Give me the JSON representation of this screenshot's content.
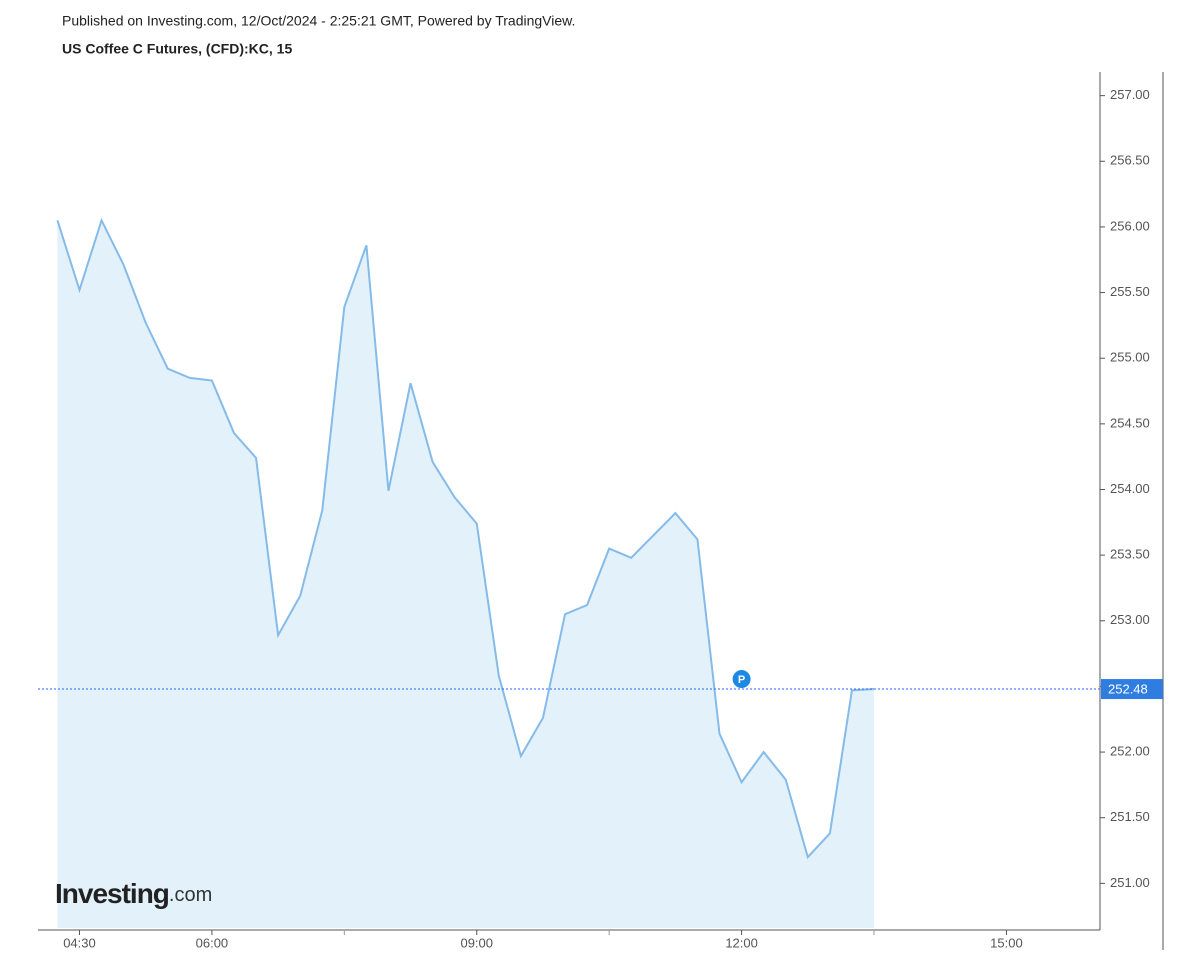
{
  "header": {
    "published": "Published on Investing.com, 12/Oct/2024 - 2:25:21 GMT, Powered by TradingView.",
    "title": "US Coffee C Futures, (CFD):KC, 15"
  },
  "logo": {
    "brand": "Investing",
    "suffix": ".com"
  },
  "chart_data": {
    "type": "area",
    "x": [
      4.25,
      4.5,
      4.75,
      5,
      5.25,
      5.5,
      5.75,
      6,
      6.25,
      6.5,
      6.75,
      7,
      7.25,
      7.5,
      7.75,
      8,
      8.25,
      8.5,
      8.75,
      9,
      9.25,
      9.5,
      9.75,
      10,
      10.25,
      10.5,
      10.75,
      11,
      11.25,
      11.5,
      11.75,
      12,
      12.25,
      12.5,
      12.75,
      13,
      13.25,
      13.5
    ],
    "series": [
      {
        "color": "#85bbe8",
        "fill": "#e3f1fb",
        "values": [
          256.05,
          255.52,
          256.05,
          255.71,
          255.27,
          254.92,
          254.85,
          254.83,
          254.43,
          254.24,
          252.89,
          253.19,
          253.84,
          255.39,
          255.86,
          253.99,
          254.81,
          254.21,
          253.94,
          253.74,
          252.58,
          251.97,
          252.26,
          253.05,
          253.12,
          253.55,
          253.48,
          253.65,
          253.82,
          253.62,
          252.14,
          251.77,
          252.0,
          251.79,
          251.2,
          251.38,
          252.47,
          252.48
        ]
      }
    ],
    "xlim": [
      4.03,
      16.06
    ],
    "ylim": [
      250.66,
      257.18
    ],
    "xticks": [
      {
        "value": 4.5,
        "label": "04:30"
      },
      {
        "value": 6,
        "label": "06:00"
      },
      {
        "value": 9,
        "label": "09:00"
      },
      {
        "value": 12,
        "label": "12:00"
      },
      {
        "value": 15,
        "label": "15:00"
      }
    ],
    "minor_xticks": [
      7.5,
      10.5,
      13.5
    ],
    "yticks": [
      {
        "value": 251,
        "label": "251.00"
      },
      {
        "value": 251.5,
        "label": "251.50"
      },
      {
        "value": 252,
        "label": "252.00"
      },
      {
        "value": 252.5,
        "label": "252.50"
      },
      {
        "value": 253,
        "label": "253.00"
      },
      {
        "value": 253.5,
        "label": "253.50"
      },
      {
        "value": 254,
        "label": "254.00"
      },
      {
        "value": 254.5,
        "label": "254.50"
      },
      {
        "value": 255,
        "label": "255.00"
      },
      {
        "value": 255.5,
        "label": "255.50"
      },
      {
        "value": 256,
        "label": "256.00"
      },
      {
        "value": 256.5,
        "label": "256.50"
      },
      {
        "value": 257,
        "label": "257.00"
      }
    ],
    "price_line_color": "#2962ff",
    "annotations": [
      {
        "x": 12,
        "text": "P",
        "color": "#1e88e5"
      }
    ]
  }
}
